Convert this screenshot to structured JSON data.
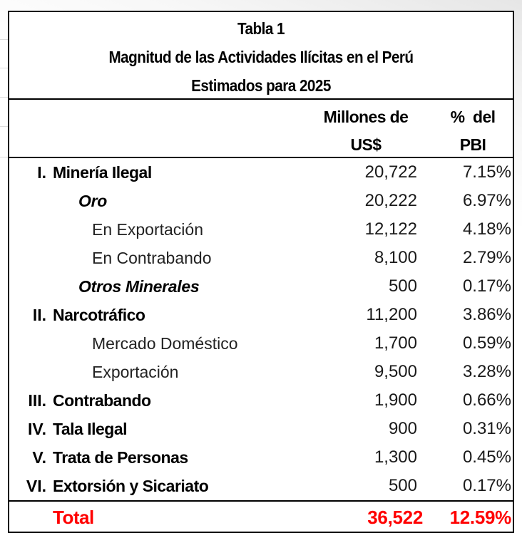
{
  "table": {
    "title_lines": [
      "Tabla 1",
      "Magnitud de las Actividades Ilícitas en el Perú",
      "Estimados para 2025"
    ],
    "headers": {
      "amount_line1": "Millones de",
      "amount_line2": "US$",
      "pct_line1": "%  del",
      "pct_line2": "PBI"
    },
    "rows": [
      {
        "num": "I.",
        "label": "Minería Ilegal",
        "amount": "20,722",
        "pct": "7.15%",
        "level": "main"
      },
      {
        "num": "",
        "label": "Oro",
        "amount": "20,222",
        "pct": "6.97%",
        "level": "sub"
      },
      {
        "num": "",
        "label": "En Exportación",
        "amount": "12,122",
        "pct": "4.18%",
        "level": "item"
      },
      {
        "num": "",
        "label": "En Contrabando",
        "amount": "8,100",
        "pct": "2.79%",
        "level": "item"
      },
      {
        "num": "",
        "label": "Otros Minerales",
        "amount": "500",
        "pct": "0.17%",
        "level": "sub"
      },
      {
        "num": "II.",
        "label": "Narcotráfico",
        "amount": "11,200",
        "pct": "3.86%",
        "level": "main"
      },
      {
        "num": "",
        "label": "Mercado Doméstico",
        "amount": "1,700",
        "pct": "0.59%",
        "level": "item"
      },
      {
        "num": "",
        "label": "Exportación",
        "amount": "9,500",
        "pct": "3.28%",
        "level": "item"
      },
      {
        "num": "III.",
        "label": "Contrabando",
        "amount": "1,900",
        "pct": "0.66%",
        "level": "main"
      },
      {
        "num": "IV.",
        "label": "Tala Ilegal",
        "amount": "900",
        "pct": "0.31%",
        "level": "main"
      },
      {
        "num": "V.",
        "label": "Trata de Personas",
        "amount": "1,300",
        "pct": "0.45%",
        "level": "main"
      },
      {
        "num": "VI.",
        "label": "Extorsión y Sicariato",
        "amount": "500",
        "pct": "0.17%",
        "level": "main"
      }
    ],
    "total": {
      "label": "Total",
      "amount": "36,522",
      "pct": "12.59%"
    }
  },
  "colors": {
    "text": "#000000",
    "total": "#ff0000",
    "border": "#000000"
  }
}
